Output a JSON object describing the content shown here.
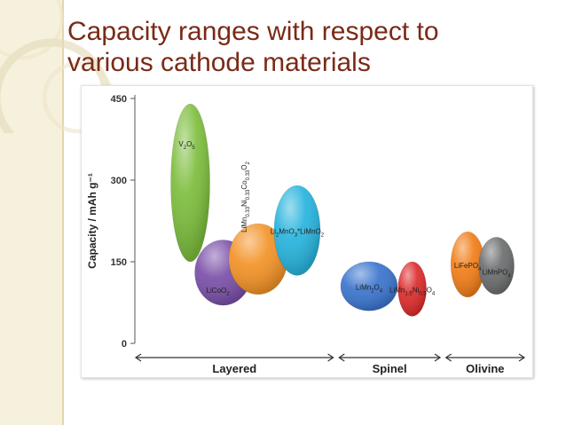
{
  "slide": {
    "title_line1": "Capacity ranges with respect to",
    "title_line2": "various cathode materials"
  },
  "chart_data": {
    "type": "scatter",
    "ylabel": "Capacity / mAh g⁻¹",
    "ylim": [
      0,
      450
    ],
    "yticks": [
      0,
      150,
      300,
      450
    ],
    "groups": [
      {
        "label": "Layered",
        "x_from": 0.0,
        "x_to": 4.85
      },
      {
        "label": "Spinel",
        "x_from": 4.95,
        "x_to": 7.45
      },
      {
        "label": "Olivine",
        "x_from": 7.55,
        "x_to": 9.5
      }
    ],
    "materials": [
      {
        "name": "V2O5",
        "name_html": "V<tspan dy='3' font-size='6'>2</tspan><tspan dy='-3'>O</tspan><tspan dy='3' font-size='6'>5</tspan>",
        "group": "Layered",
        "x": 1.35,
        "capacity_min": 150,
        "capacity_max": 440,
        "color": "#7cbd3c",
        "label_pos": "top"
      },
      {
        "name": "LiCoO2",
        "name_html": "LiCoO<tspan dy='3' font-size='6'>2</tspan>",
        "group": "Layered",
        "x": 2.15,
        "capacity_min": 70,
        "capacity_max": 190,
        "color": "#7a4fa8",
        "label_pos": "bottom-left"
      },
      {
        "name": "LiMn0.33Ni0.33Co0.33O2",
        "name_html": "LiMn<tspan dy='3' font-size='6'>0.33</tspan><tspan dy='-3'>Ni</tspan><tspan dy='3' font-size='6'>0.33</tspan><tspan dy='-3'>Co</tspan><tspan dy='3' font-size='6'>0.33</tspan><tspan dy='-3'>O</tspan><tspan dy='3' font-size='6'>2</tspan>",
        "group": "Layered",
        "x": 3.0,
        "capacity_min": 90,
        "capacity_max": 220,
        "color": "#f39226",
        "label_pos": "vertical"
      },
      {
        "name": "Li2MnO3*LiMnO2",
        "name_html": "Li<tspan dy='3' font-size='6'>2</tspan><tspan dy='-3'>MnO</tspan><tspan dy='3' font-size='6'>3</tspan><tspan dy='-3'>*LiMnO</tspan><tspan dy='3' font-size='6'>2</tspan>",
        "group": "Layered",
        "x": 3.95,
        "capacity_min": 125,
        "capacity_max": 290,
        "color": "#27b4de",
        "label_pos": "center"
      },
      {
        "name": "LiMn2O4",
        "name_html": "LiMn<tspan dy='3' font-size='6'>2</tspan><tspan dy='-3'>O</tspan><tspan dy='3' font-size='6'>4</tspan>",
        "group": "Spinel",
        "x": 5.7,
        "capacity_min": 60,
        "capacity_max": 150,
        "color": "#3a74cd",
        "label_pos": "center"
      },
      {
        "name": "LiMn1.5Ni0.5O4",
        "name_html": "LiMn<tspan dy='3' font-size='6'>1.5</tspan><tspan dy='-3'>Ni</tspan><tspan dy='3' font-size='6'>0.5</tspan><tspan dy='-3'>O</tspan><tspan dy='3' font-size='6'>4</tspan>",
        "group": "Spinel",
        "x": 6.75,
        "capacity_min": 50,
        "capacity_max": 150,
        "color": "#dc2b2b",
        "label_pos": "center"
      },
      {
        "name": "LiFePO4",
        "name_html": "LiFePO<tspan dy='3' font-size='6'>4</tspan>",
        "group": "Olivine",
        "x": 8.1,
        "capacity_min": 85,
        "capacity_max": 205,
        "color": "#f27d18",
        "label_pos": "center"
      },
      {
        "name": "LiMnPO4",
        "name_html": "LiMnPO<tspan dy='3' font-size='6'>4</tspan>",
        "group": "Olivine",
        "x": 8.8,
        "capacity_min": 90,
        "capacity_max": 195,
        "color": "#6c6d6e",
        "label_pos": "bottom"
      }
    ]
  }
}
